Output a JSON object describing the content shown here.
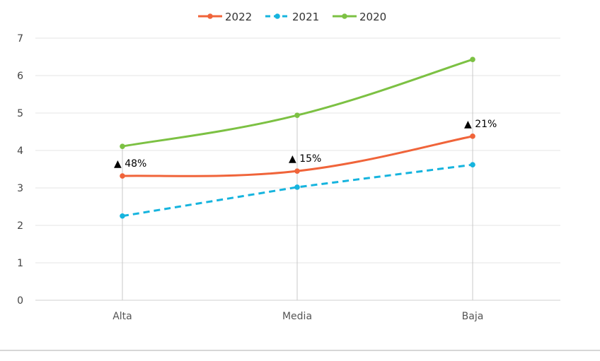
{
  "chart_data": {
    "type": "line",
    "title": "",
    "xlabel": "",
    "ylabel": "",
    "categories": [
      "Alta",
      "Media",
      "Baja"
    ],
    "ylim": [
      0,
      7
    ],
    "yticks": [
      "0",
      "1",
      "2",
      "3",
      "4",
      "5",
      "6",
      "7"
    ],
    "grid": true,
    "legend_position": "top-center",
    "series": [
      {
        "name": "2022",
        "values": [
          3.32,
          3.45,
          4.38
        ],
        "color": "#f0643a",
        "dashed": false
      },
      {
        "name": "2021",
        "values": [
          2.25,
          3.02,
          3.62
        ],
        "color": "#16b4de",
        "dashed": true
      },
      {
        "name": "2020",
        "values": [
          4.11,
          4.94,
          6.43
        ],
        "color": "#7cc143",
        "dashed": false
      }
    ],
    "annotations": [
      {
        "category": "Alta",
        "text": "▲ 48%"
      },
      {
        "category": "Media",
        "text": "▲ 15%"
      },
      {
        "category": "Baja",
        "text": "▲ 21%"
      }
    ]
  }
}
